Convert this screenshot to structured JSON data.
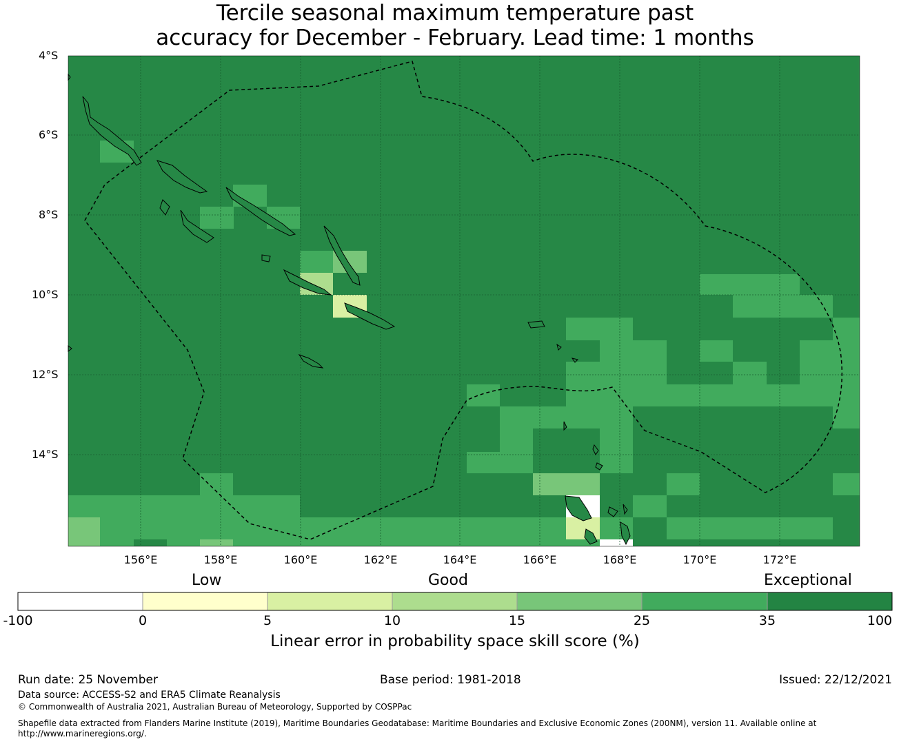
{
  "title": {
    "line1": "Tercile seasonal maximum temperature past",
    "line2": "accuracy for December - February. Lead time: 1 months"
  },
  "map": {
    "lat_labels": [
      "4°S",
      "6°S",
      "8°S",
      "10°S",
      "12°S",
      "14°S"
    ],
    "lon_labels": [
      "156°E",
      "158°E",
      "160°E",
      "162°E",
      "164°E",
      "166°E",
      "168°E",
      "170°E",
      "172°E"
    ],
    "background_color": "#268846"
  },
  "legend": {
    "categories": [
      "Low",
      "Good",
      "Exceptional"
    ],
    "ticks": [
      "-100",
      "0",
      "5",
      "10",
      "15",
      "25",
      "35",
      "100"
    ],
    "colors": [
      "#ffffff",
      "#ffffcc",
      "#d9f0a3",
      "#addd8e",
      "#78c679",
      "#41ab5d",
      "#238443"
    ],
    "title": "Linear error in probability space skill score (%)"
  },
  "footer": {
    "run_date": "Run date: 25 November",
    "base_period": "Base period: 1981-2018",
    "issued": "Issued: 22/12/2021",
    "data_source": "Data source: ACCESS-S2 and ERA5 Climate Reanalysis",
    "copyright": "© Commonwealth of Australia 2021, Australian Bureau of Meteorology, Supported by COSPPac",
    "shapefile_line1": "Shapefile data extracted from Flanders Marine Institute (2019), Maritime Boundaries Geodatabase: Maritime Boundaries and Exclusive Economic Zones (200NM), version 11. Available online at",
    "shapefile_line2": "http://www.marineregions.org/."
  }
}
